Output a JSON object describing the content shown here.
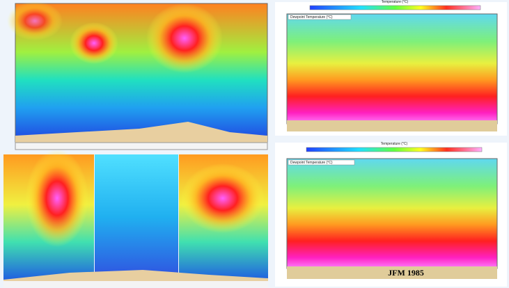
{
  "panels": {
    "top_right": {
      "colorbar_title": "Temperature (°C)",
      "legend": "Dewpoint Temperature (°C)"
    },
    "bottom_right": {
      "colorbar_title": "Temperature (°C)",
      "legend": "Dewpoint Temperature (°C)",
      "caption": "JFM 1985"
    }
  }
}
